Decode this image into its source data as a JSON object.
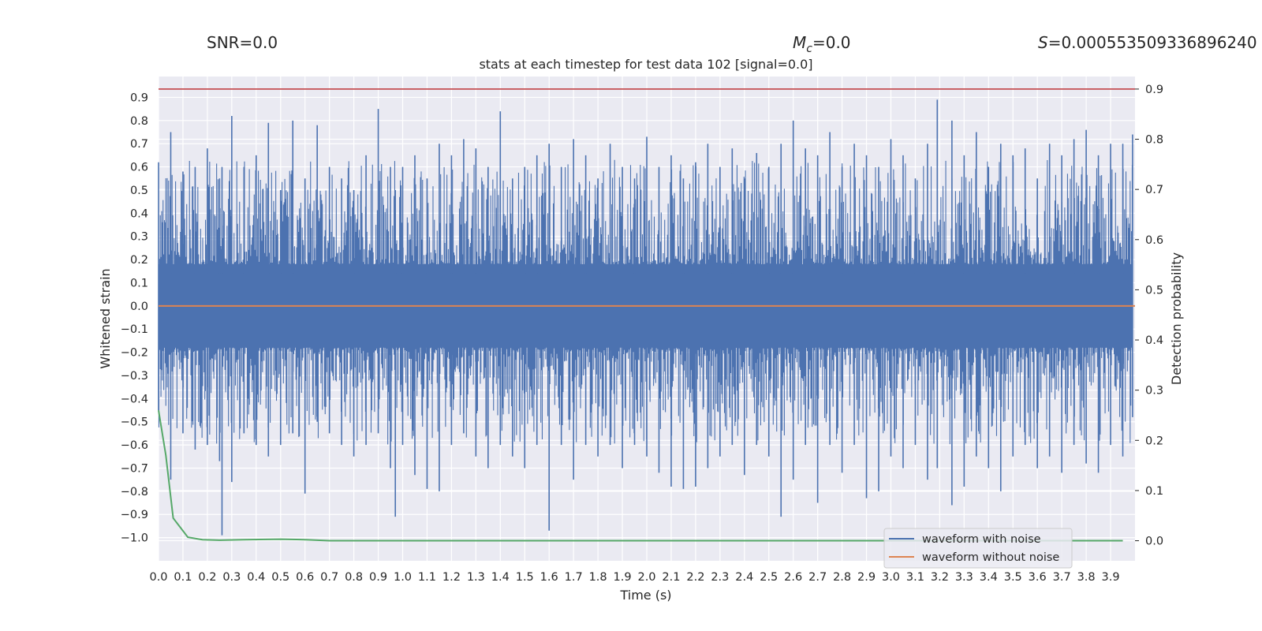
{
  "header": {
    "snr_label": "SNR=0.0",
    "mc_symbol": "M",
    "mc_subscript": "c",
    "mc_value": "=0.0",
    "s_symbol": "S",
    "s_value": "=0.000553509336896240"
  },
  "chart_data": {
    "type": "line",
    "title": "stats at each timestep for test data 102 [signal=0.0]",
    "xlabel": "Time (s)",
    "ylabel_left": "Whitened strain",
    "ylabel_right": "Detection probability",
    "xlim": [
      0.0,
      4.0
    ],
    "ylim_left": [
      -1.1,
      0.99
    ],
    "ylim_right": [
      -0.04,
      0.925
    ],
    "x_ticks": [
      "0.0",
      "0.1",
      "0.2",
      "0.3",
      "0.4",
      "0.5",
      "0.6",
      "0.7",
      "0.8",
      "0.9",
      "1.0",
      "1.1",
      "1.2",
      "1.3",
      "1.4",
      "1.5",
      "1.6",
      "1.7",
      "1.8",
      "1.9",
      "2.0",
      "2.1",
      "2.2",
      "2.3",
      "2.4",
      "2.5",
      "2.6",
      "2.7",
      "2.8",
      "2.9",
      "3.0",
      "3.1",
      "3.2",
      "3.3",
      "3.4",
      "3.5",
      "3.6",
      "3.7",
      "3.8",
      "3.9"
    ],
    "y_ticks_left": [
      "0.9",
      "0.8",
      "0.7",
      "0.6",
      "0.5",
      "0.4",
      "0.3",
      "0.2",
      "0.1",
      "0.0",
      "−0.1",
      "−0.2",
      "−0.3",
      "−0.4",
      "−0.5",
      "−0.6",
      "−0.7",
      "−0.8",
      "−0.9",
      "−1.0"
    ],
    "y_ticks_right": [
      "0.9",
      "0.8",
      "0.7",
      "0.6",
      "0.5",
      "0.4",
      "0.3",
      "0.2",
      "0.1",
      "0.0"
    ],
    "grid": true,
    "legend": "bottom-right",
    "series": [
      {
        "name": "waveform with noise",
        "axis": "left",
        "color": "#4c72b0",
        "x": [
          0.0,
          0.05,
          0.1,
          0.15,
          0.2,
          0.25,
          0.26,
          0.3,
          0.35,
          0.4,
          0.45,
          0.5,
          0.55,
          0.6,
          0.65,
          0.7,
          0.75,
          0.8,
          0.85,
          0.9,
          0.95,
          0.97,
          1.0,
          1.05,
          1.1,
          1.15,
          1.2,
          1.25,
          1.3,
          1.35,
          1.4,
          1.45,
          1.5,
          1.55,
          1.6,
          1.65,
          1.7,
          1.75,
          1.8,
          1.85,
          1.9,
          1.95,
          2.0,
          2.05,
          2.1,
          2.15,
          2.2,
          2.25,
          2.3,
          2.35,
          2.4,
          2.45,
          2.5,
          2.55,
          2.6,
          2.65,
          2.7,
          2.75,
          2.8,
          2.85,
          2.9,
          2.95,
          3.0,
          3.05,
          3.1,
          3.15,
          3.19,
          3.25,
          3.3,
          3.35,
          3.4,
          3.45,
          3.5,
          3.55,
          3.6,
          3.65,
          3.7,
          3.75,
          3.8,
          3.85,
          3.9,
          3.95,
          3.99
        ],
        "y_max": [
          0.62,
          0.75,
          0.58,
          0.6,
          0.68,
          0.55,
          0.6,
          0.82,
          0.6,
          0.65,
          0.79,
          0.5,
          0.8,
          0.55,
          0.78,
          0.6,
          0.55,
          0.5,
          0.65,
          0.85,
          0.6,
          0.5,
          0.6,
          0.65,
          0.55,
          0.7,
          0.65,
          0.72,
          0.68,
          0.6,
          0.84,
          0.55,
          0.6,
          0.65,
          0.7,
          0.6,
          0.72,
          0.65,
          0.55,
          0.7,
          0.6,
          0.55,
          0.73,
          0.6,
          0.65,
          0.55,
          0.62,
          0.7,
          0.6,
          0.68,
          0.55,
          0.66,
          0.6,
          0.7,
          0.8,
          0.68,
          0.65,
          0.75,
          0.6,
          0.7,
          0.65,
          0.6,
          0.72,
          0.65,
          0.55,
          0.7,
          0.89,
          0.8,
          0.65,
          0.75,
          0.6,
          0.7,
          0.65,
          0.68,
          0.55,
          0.7,
          0.65,
          0.72,
          0.76,
          0.65,
          0.7,
          0.7,
          0.74
        ],
        "y_min": [
          -0.45,
          -0.75,
          -0.55,
          -0.62,
          -0.6,
          -0.67,
          -0.99,
          -0.76,
          -0.55,
          -0.6,
          -0.65,
          -0.6,
          -0.55,
          -0.81,
          -0.5,
          -0.55,
          -0.6,
          -0.65,
          -0.6,
          -0.55,
          -0.7,
          -0.91,
          -0.6,
          -0.73,
          -0.79,
          -0.8,
          -0.6,
          -0.55,
          -0.65,
          -0.7,
          -0.6,
          -0.65,
          -0.7,
          -0.6,
          -0.97,
          -0.6,
          -0.75,
          -0.6,
          -0.65,
          -0.6,
          -0.7,
          -0.6,
          -0.65,
          -0.72,
          -0.78,
          -0.79,
          -0.78,
          -0.7,
          -0.65,
          -0.6,
          -0.73,
          -0.6,
          -0.65,
          -0.91,
          -0.75,
          -0.6,
          -0.85,
          -0.6,
          -0.72,
          -0.6,
          -0.83,
          -0.8,
          -0.65,
          -0.7,
          -0.6,
          -0.75,
          -0.7,
          -0.86,
          -0.78,
          -0.65,
          -0.7,
          -0.8,
          -0.65,
          -0.6,
          -0.7,
          -0.65,
          -0.72,
          -0.6,
          -0.68,
          -0.72,
          -0.6,
          -0.65,
          -0.48
        ]
      },
      {
        "name": "waveform without noise",
        "axis": "left",
        "color": "#dd8452",
        "x": [
          0.0,
          4.0
        ],
        "y": [
          0.0,
          0.0
        ]
      },
      {
        "axis": "right",
        "color": "#55a868",
        "x": [
          0.0,
          0.03,
          0.06,
          0.12,
          0.18,
          0.25,
          0.35,
          0.5,
          0.6,
          0.7,
          0.85,
          1.0,
          1.5,
          2.0,
          2.5,
          3.0,
          3.5,
          3.95
        ],
        "y": [
          0.26,
          0.17,
          0.045,
          0.007,
          0.002,
          0.001,
          0.002,
          0.003,
          0.002,
          0.0,
          0.0,
          0.0,
          0.0,
          0.0,
          0.0,
          0.0,
          0.0,
          0.0
        ]
      },
      {
        "axis": "right",
        "color": "#c44e52",
        "x": [
          0.0,
          4.0
        ],
        "y": [
          0.9,
          0.9
        ]
      }
    ]
  }
}
